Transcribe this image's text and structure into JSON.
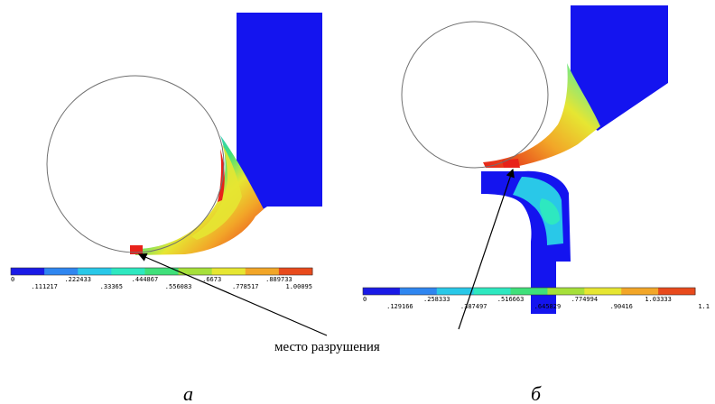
{
  "panel_a": {
    "label": "а",
    "scale_top": [
      "0",
      ".222433",
      ".444867",
      ".6673",
      ".889733"
    ],
    "scale_bottom": [
      ".111217",
      ".33365",
      ".556083",
      ".778517",
      "1.00095"
    ]
  },
  "panel_b": {
    "label": "б",
    "scale_top": [
      "0",
      ".258333",
      ".516663",
      ".774994",
      "1.03333"
    ],
    "scale_bottom": [
      ".129166",
      ".387497",
      ".645829",
      ".90416",
      "1.1"
    ]
  },
  "annotation": {
    "text": "место разрушения"
  },
  "colors": {
    "scale": [
      "#1a1ae6",
      "#2f86f0",
      "#29c8e8",
      "#2ee8c0",
      "#3fe07a",
      "#a6e03a",
      "#e6e632",
      "#f2a628",
      "#e84a1c"
    ],
    "body": "#1414ef",
    "hot": "#e8221a"
  }
}
